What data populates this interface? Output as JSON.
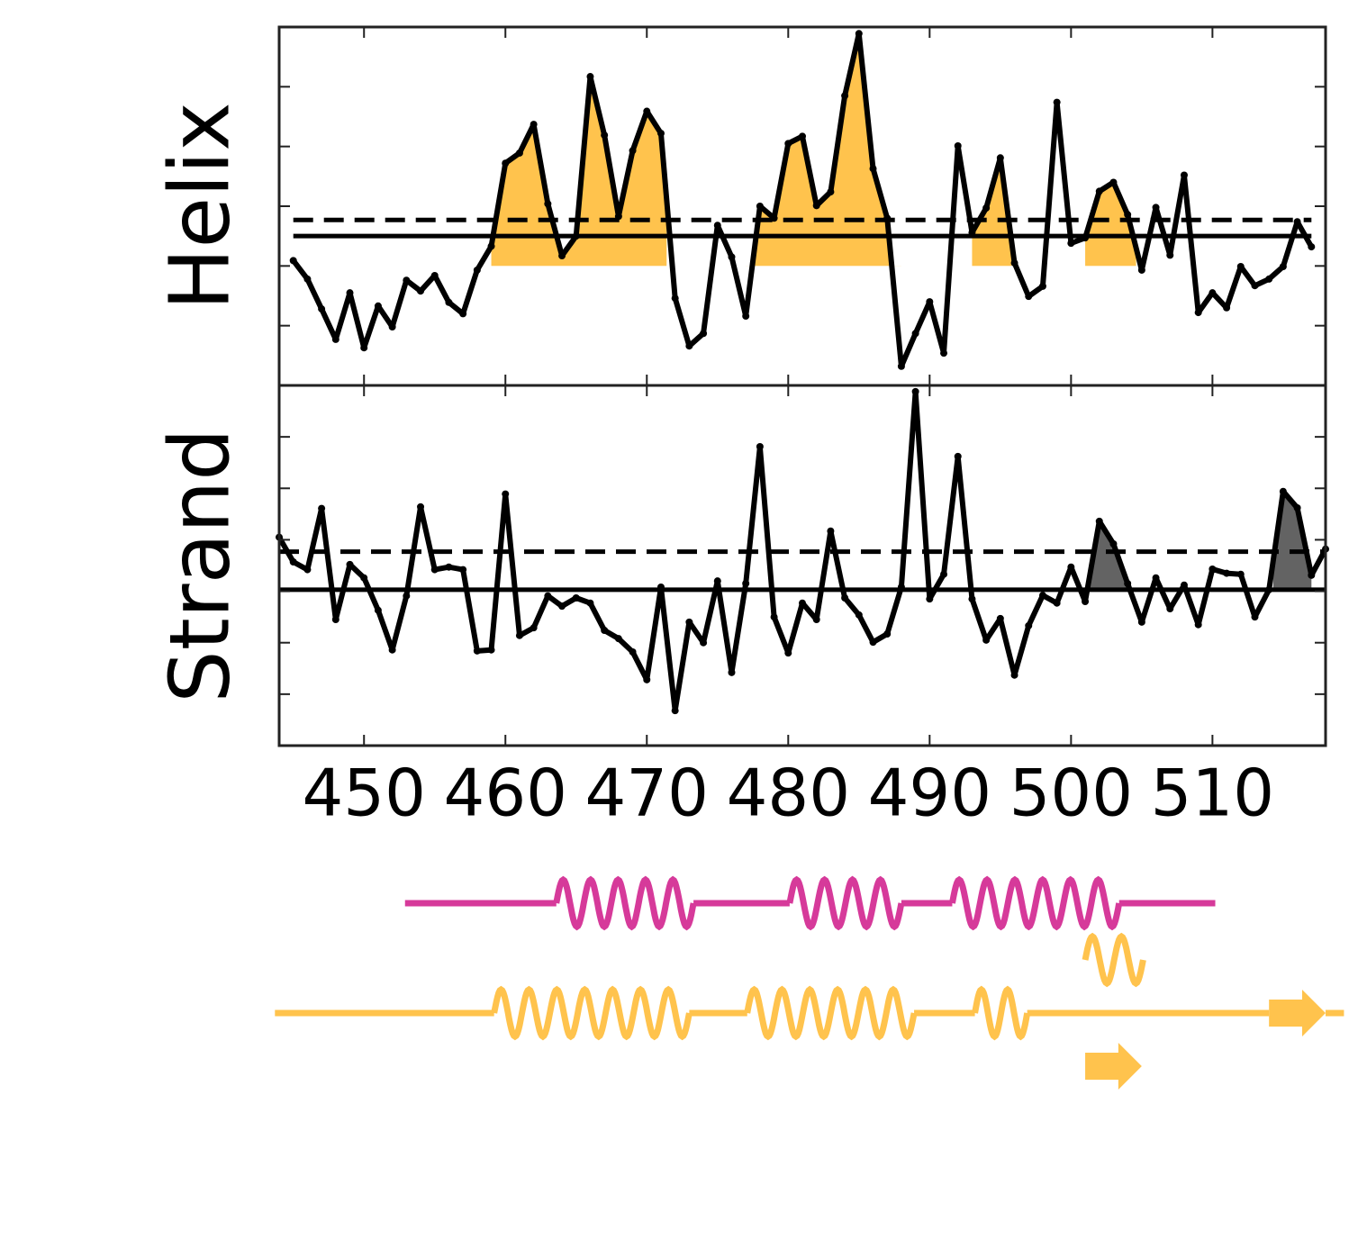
{
  "chart_data": [
    {
      "type": "line",
      "ylabel": "Helix",
      "xlim": [
        444,
        518
      ],
      "ylim": [
        0,
        6
      ],
      "yticks": [
        1,
        2,
        3,
        4,
        5
      ],
      "xticks": [
        450,
        460,
        470,
        480,
        490,
        500,
        510
      ],
      "x": [
        445,
        446,
        447,
        448,
        449,
        450,
        451,
        452,
        453,
        454,
        455,
        456,
        457,
        458,
        459,
        460,
        461,
        462,
        463,
        464,
        465,
        466,
        467,
        468,
        469,
        470,
        471,
        472,
        473,
        474,
        475,
        476,
        477,
        478,
        479,
        480,
        481,
        482,
        483,
        484,
        485,
        486,
        487,
        488,
        489,
        490,
        491,
        492,
        493,
        494,
        495,
        496,
        497,
        498,
        499,
        500,
        501,
        502,
        503,
        504,
        505,
        506,
        507,
        508,
        509,
        510,
        511,
        512,
        513,
        514,
        515,
        516,
        517
      ],
      "values": [
        2.09,
        1.78,
        1.28,
        0.77,
        1.55,
        0.63,
        1.33,
        0.98,
        1.76,
        1.58,
        1.84,
        1.39,
        1.2,
        1.93,
        2.33,
        3.72,
        3.89,
        4.37,
        3.04,
        2.17,
        2.5,
        5.17,
        4.19,
        2.83,
        3.93,
        4.59,
        4.22,
        1.46,
        0.66,
        0.87,
        2.68,
        2.15,
        1.16,
        3.0,
        2.8,
        4.05,
        4.17,
        3.01,
        3.24,
        4.85,
        5.89,
        3.63,
        2.8,
        0.32,
        0.87,
        1.4,
        0.54,
        4.01,
        2.56,
        2.97,
        3.81,
        2.05,
        1.49,
        1.66,
        4.74,
        2.38,
        2.47,
        3.25,
        3.4,
        2.86,
        1.93,
        2.98,
        2.18,
        3.52,
        1.22,
        1.55,
        1.3,
        1.99,
        1.67,
        1.78,
        1.99,
        2.74,
        2.32
      ],
      "color": "#000000",
      "solid_line": 2.5,
      "dashed_line": 2.77,
      "fill_base": 2.0,
      "fill_color": "#ffc34d",
      "fill_regions": [
        [
          459,
          471.4
        ],
        [
          477,
          488
        ],
        [
          493,
          495.8
        ],
        [
          501,
          504.6
        ]
      ]
    },
    {
      "type": "line",
      "ylabel": "Strand",
      "xlim": [
        444,
        518
      ],
      "ylim": [
        0,
        7
      ],
      "yticks": [
        1,
        2,
        3,
        4,
        5,
        6
      ],
      "xticks": [
        450,
        460,
        470,
        480,
        490,
        500,
        510
      ],
      "x": [
        444,
        445,
        446,
        447,
        448,
        449,
        450,
        451,
        452,
        453,
        454,
        455,
        456,
        457,
        458,
        459,
        460,
        461,
        462,
        463,
        464,
        465,
        466,
        467,
        468,
        469,
        470,
        471,
        472,
        473,
        474,
        475,
        476,
        477,
        478,
        479,
        480,
        481,
        482,
        483,
        484,
        485,
        486,
        487,
        488,
        489,
        490,
        491,
        492,
        493,
        494,
        495,
        496,
        497,
        498,
        499,
        500,
        501,
        502,
        503,
        504,
        505,
        506,
        507,
        508,
        509,
        510,
        511,
        512,
        513,
        514,
        515,
        516,
        517,
        518
      ],
      "values": [
        4.05,
        3.57,
        3.42,
        4.61,
        2.45,
        3.52,
        3.26,
        2.63,
        1.86,
        2.91,
        4.64,
        3.42,
        3.47,
        3.42,
        1.84,
        1.86,
        4.89,
        2.14,
        2.29,
        2.91,
        2.71,
        2.87,
        2.77,
        2.24,
        2.08,
        1.82,
        1.28,
        3.08,
        0.68,
        2.4,
        2.0,
        3.2,
        1.42,
        3.15,
        5.81,
        2.5,
        1.8,
        2.77,
        2.45,
        4.17,
        2.87,
        2.54,
        2.01,
        2.17,
        3.08,
        6.88,
        2.85,
        3.33,
        5.62,
        2.85,
        2.05,
        2.47,
        1.37,
        2.33,
        2.92,
        2.77,
        3.47,
        2.8,
        4.36,
        3.92,
        3.15,
        2.4,
        3.26,
        2.66,
        3.12,
        2.35,
        3.43,
        3.35,
        3.33,
        2.5,
        3.03,
        4.94,
        4.62,
        3.31,
        3.82
      ],
      "color": "#000000",
      "solid_line": 3.03,
      "dashed_line": 3.77,
      "fill_base": 3.03,
      "fill_color": "#636363",
      "fill_regions": [
        [
          501,
          504.2
        ],
        [
          514.3,
          517
        ]
      ]
    },
    {
      "type": "topology",
      "xlim": [
        444,
        518
      ],
      "tracks": [
        {
          "color": "#d63a9a",
          "line": [
            452.9,
            510.2
          ],
          "helices": [
            [
              463.6,
              473.3
            ],
            [
              480.1,
              488
            ],
            [
              491.6,
              503.4
            ]
          ],
          "strands": []
        },
        {
          "color": "#ffc34d",
          "helices": [
            [
              501,
              505.1
            ]
          ],
          "strands": []
        },
        {
          "color": "#ffc34d",
          "line": [
            443.7,
            519.3
          ],
          "helices": [
            [
              459.2,
              473
            ],
            [
              477.1,
              488.9
            ],
            [
              493.2,
              496.9
            ]
          ],
          "strands": [
            [
              514,
              518
            ]
          ]
        },
        {
          "color": "#ffc34d",
          "helices": [],
          "strands": [
            [
              501,
              505
            ]
          ]
        }
      ]
    }
  ]
}
